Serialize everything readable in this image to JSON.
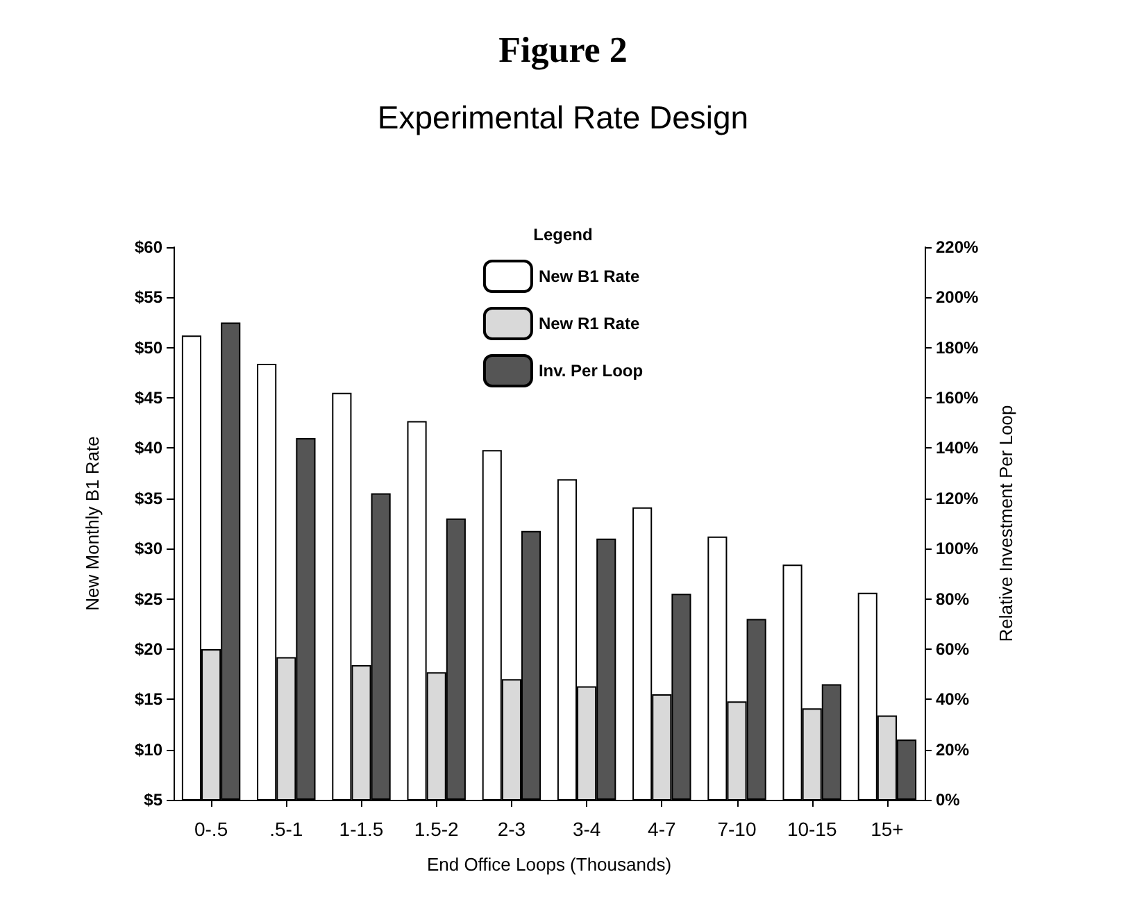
{
  "chart_data": {
    "type": "bar",
    "title": "Figure 2",
    "subtitle": "Experimental Rate Design",
    "xlabel": "End Office Loops (Thousands)",
    "ylabel": "New Monthly B1 Rate",
    "y2label": "Relative Investment Per Loop",
    "legend_title": "Legend",
    "categories": [
      "0-.5",
      ".5-1",
      "1-1.5",
      "1.5-2",
      "2-3",
      "3-4",
      "4-7",
      "7-10",
      "10-15",
      "15+"
    ],
    "series": [
      {
        "name": "New B1 Rate",
        "color": "#ffffff",
        "values": [
          51.2,
          48.4,
          45.5,
          42.7,
          39.8,
          36.9,
          34.1,
          31.2,
          28.4,
          25.6
        ]
      },
      {
        "name": "New R1 Rate",
        "color": "#d9d9d9",
        "values": [
          20.0,
          19.2,
          18.4,
          17.7,
          17.0,
          16.3,
          15.5,
          14.8,
          14.1,
          13.4
        ]
      },
      {
        "name": "Inv. Per Loop",
        "color": "#555555",
        "axis": "y2",
        "values": [
          190,
          144,
          122,
          112,
          107,
          104,
          82,
          72,
          46,
          24
        ]
      }
    ],
    "ylim": [
      5,
      60
    ],
    "yticks": [
      {
        "value": 5,
        "label": "$5"
      },
      {
        "value": 10,
        "label": "$10"
      },
      {
        "value": 15,
        "label": "$15"
      },
      {
        "value": 20,
        "label": "$20"
      },
      {
        "value": 25,
        "label": "$25"
      },
      {
        "value": 30,
        "label": "$30"
      },
      {
        "value": 35,
        "label": "$35"
      },
      {
        "value": 40,
        "label": "$40"
      },
      {
        "value": 45,
        "label": "$45"
      },
      {
        "value": 50,
        "label": "$50"
      },
      {
        "value": 55,
        "label": "$55"
      },
      {
        "value": 60,
        "label": "$60"
      }
    ],
    "y2lim": [
      0,
      220
    ],
    "y2ticks": [
      {
        "value": 0,
        "label": "0%"
      },
      {
        "value": 20,
        "label": "20%"
      },
      {
        "value": 40,
        "label": "40%"
      },
      {
        "value": 60,
        "label": "60%"
      },
      {
        "value": 80,
        "label": "80%"
      },
      {
        "value": 100,
        "label": "100%"
      },
      {
        "value": 120,
        "label": "120%"
      },
      {
        "value": 140,
        "label": "140%"
      },
      {
        "value": 160,
        "label": "160%"
      },
      {
        "value": 180,
        "label": "180%"
      },
      {
        "value": 200,
        "label": "200%"
      },
      {
        "value": 220,
        "label": "220%"
      }
    ],
    "legend": "top",
    "grid": false
  }
}
